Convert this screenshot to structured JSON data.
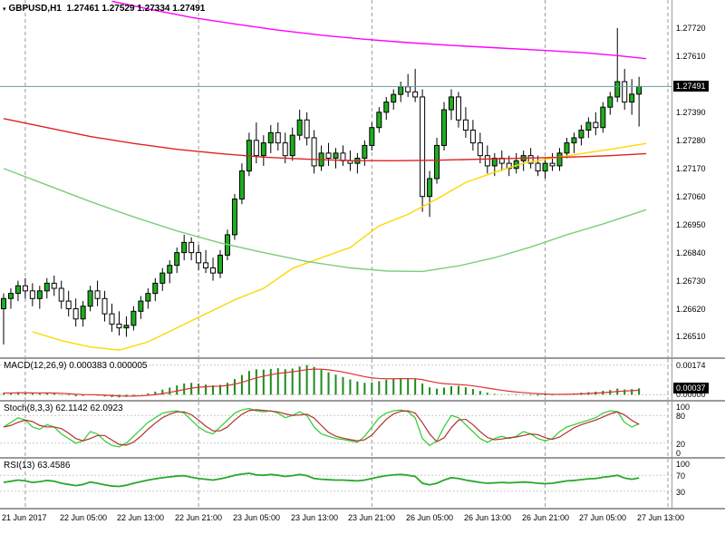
{
  "header": {
    "symbol_period": "GBPUSD,H1",
    "ohlc_text": "1.27461 1.27529 1.27334 1.27491",
    "dropdown_icon": "▾"
  },
  "chart_data": {
    "type": "candlestick+indicators",
    "symbol": "GBPUSD",
    "timeframe": "H1",
    "last": {
      "open": 1.27461,
      "high": 1.27529,
      "low": 1.27334,
      "close": 1.27491
    },
    "time_labels": [
      "21 Jun 2017",
      "22 Jun 05:00",
      "22 Jun 13:00",
      "22 Jun 21:00",
      "23 Jun 05:00",
      "23 Jun 13:00",
      "23 Jun 21:00",
      "26 Jun 05:00",
      "26 Jun 13:00",
      "26 Jun 21:00",
      "27 Jun 05:00",
      "27 Jun 13:00"
    ],
    "label_candle_indices": [
      0,
      8,
      16,
      24,
      32,
      40,
      48,
      56,
      64,
      72,
      80,
      88
    ],
    "day_separators": [
      3,
      27,
      51,
      75,
      92
    ],
    "main": {
      "price_min": 1.2643,
      "price_max": 1.2783,
      "scale_labels": [
        "1.27720",
        "1.27610",
        "1.27500",
        "1.27390",
        "1.27280",
        "1.27170",
        "1.27060",
        "1.26950",
        "1.26840",
        "1.26730",
        "1.26620",
        "1.26510"
      ],
      "price_badge": "1.27491",
      "bull_color": "#1fae1f",
      "bear_color": "#ffffff",
      "wick_color": "#000000",
      "price_line": {
        "value": 1.27491,
        "color": "#5f9ea0"
      },
      "candles": [
        [
          1.2662,
          1.2668,
          1.2648,
          1.2666
        ],
        [
          1.2666,
          1.267,
          1.2662,
          1.2668
        ],
        [
          1.2668,
          1.2673,
          1.2665,
          1.2671
        ],
        [
          1.2671,
          1.2674,
          1.2666,
          1.2669
        ],
        [
          1.2669,
          1.2672,
          1.2663,
          1.2666
        ],
        [
          1.2666,
          1.2671,
          1.2662,
          1.2669
        ],
        [
          1.2669,
          1.2674,
          1.2666,
          1.2672
        ],
        [
          1.2672,
          1.2675,
          1.2667,
          1.267
        ],
        [
          1.267,
          1.2673,
          1.2662,
          1.2665
        ],
        [
          1.2665,
          1.2669,
          1.2659,
          1.2662
        ],
        [
          1.2662,
          1.2666,
          1.2655,
          1.2658
        ],
        [
          1.2658,
          1.2665,
          1.2655,
          1.2663
        ],
        [
          1.2663,
          1.2671,
          1.2661,
          1.2669
        ],
        [
          1.2669,
          1.2673,
          1.2663,
          1.2666
        ],
        [
          1.2666,
          1.2669,
          1.2657,
          1.266
        ],
        [
          1.266,
          1.2664,
          1.2653,
          1.2656
        ],
        [
          1.2656,
          1.2661,
          1.26515,
          1.26545
        ],
        [
          1.26545,
          1.2659,
          1.2651,
          1.26555
        ],
        [
          1.26555,
          1.2663,
          1.26535,
          1.2661
        ],
        [
          1.2661,
          1.2667,
          1.2658,
          1.2665
        ],
        [
          1.2665,
          1.267,
          1.2662,
          1.2668
        ],
        [
          1.2668,
          1.2674,
          1.2665,
          1.2672
        ],
        [
          1.2672,
          1.2678,
          1.2669,
          1.2676
        ],
        [
          1.2676,
          1.2681,
          1.2672,
          1.2679
        ],
        [
          1.2679,
          1.2686,
          1.2676,
          1.2684
        ],
        [
          1.2684,
          1.2691,
          1.2681,
          1.2688
        ],
        [
          1.2688,
          1.269,
          1.2681,
          1.2684
        ],
        [
          1.2684,
          1.2687,
          1.2677,
          1.268
        ],
        [
          1.268,
          1.2685,
          1.2676,
          1.2678
        ],
        [
          1.2678,
          1.2682,
          1.2673,
          1.2676
        ],
        [
          1.2676,
          1.2685,
          1.2674,
          1.2683
        ],
        [
          1.2683,
          1.2693,
          1.2681,
          1.2691
        ],
        [
          1.2691,
          1.2707,
          1.2689,
          1.2705
        ],
        [
          1.2705,
          1.2719,
          1.2703,
          1.2716
        ],
        [
          1.2716,
          1.2731,
          1.2714,
          1.2728
        ],
        [
          1.2728,
          1.2735,
          1.2719,
          1.2722
        ],
        [
          1.2722,
          1.273,
          1.2718,
          1.2727
        ],
        [
          1.2727,
          1.2734,
          1.2723,
          1.2731
        ],
        [
          1.2731,
          1.2735,
          1.2724,
          1.2727
        ],
        [
          1.2727,
          1.2731,
          1.2719,
          1.2722
        ],
        [
          1.2722,
          1.2733,
          1.272,
          1.273
        ],
        [
          1.273,
          1.274,
          1.2728,
          1.2736
        ],
        [
          1.2736,
          1.2739,
          1.2726,
          1.2729
        ],
        [
          1.2729,
          1.2732,
          1.2715,
          1.2718
        ],
        [
          1.2718,
          1.2726,
          1.2716,
          1.2723
        ],
        [
          1.2723,
          1.2727,
          1.2718,
          1.2721
        ],
        [
          1.2721,
          1.2725,
          1.2717,
          1.2723
        ],
        [
          1.2723,
          1.2726,
          1.2718,
          1.272
        ],
        [
          1.272,
          1.2724,
          1.2716,
          1.2719
        ],
        [
          1.2719,
          1.2723,
          1.2715,
          1.2721
        ],
        [
          1.2721,
          1.2728,
          1.2718,
          1.2726
        ],
        [
          1.2726,
          1.2735,
          1.2724,
          1.2733
        ],
        [
          1.2733,
          1.2741,
          1.2731,
          1.2739
        ],
        [
          1.2739,
          1.2745,
          1.2736,
          1.2743
        ],
        [
          1.2743,
          1.2748,
          1.274,
          1.2746
        ],
        [
          1.2746,
          1.2751,
          1.2743,
          1.2749
        ],
        [
          1.2749,
          1.2754,
          1.2745,
          1.2747
        ],
        [
          1.2747,
          1.2756,
          1.2743,
          1.2745
        ],
        [
          1.2745,
          1.2748,
          1.27,
          1.2706
        ],
        [
          1.2706,
          1.2716,
          1.2698,
          1.2713
        ],
        [
          1.2713,
          1.2729,
          1.2711,
          1.2726
        ],
        [
          1.2726,
          1.2743,
          1.2724,
          1.274
        ],
        [
          1.274,
          1.2748,
          1.2736,
          1.2745
        ],
        [
          1.2745,
          1.2747,
          1.2733,
          1.2736
        ],
        [
          1.2736,
          1.2741,
          1.2729,
          1.2732
        ],
        [
          1.2732,
          1.2736,
          1.2724,
          1.2727
        ],
        [
          1.2727,
          1.2731,
          1.2719,
          1.2722
        ],
        [
          1.2722,
          1.2726,
          1.2715,
          1.2718
        ],
        [
          1.2718,
          1.2723,
          1.2714,
          1.2721
        ],
        [
          1.2721,
          1.2724,
          1.2716,
          1.2719
        ],
        [
          1.2719,
          1.2722,
          1.2714,
          1.2717
        ],
        [
          1.2717,
          1.2723,
          1.2715,
          1.272
        ],
        [
          1.272,
          1.2724,
          1.2716,
          1.2722
        ],
        [
          1.2722,
          1.2725,
          1.2717,
          1.2719
        ],
        [
          1.2719,
          1.2722,
          1.2714,
          1.2716
        ],
        [
          1.2716,
          1.2721,
          1.2713,
          1.2719
        ],
        [
          1.2719,
          1.2723,
          1.2716,
          1.2718
        ],
        [
          1.2718,
          1.2725,
          1.2716,
          1.2723
        ],
        [
          1.2723,
          1.2729,
          1.2721,
          1.2727
        ],
        [
          1.2727,
          1.2731,
          1.2723,
          1.2729
        ],
        [
          1.2729,
          1.2734,
          1.2726,
          1.2732
        ],
        [
          1.2732,
          1.2737,
          1.2729,
          1.2735
        ],
        [
          1.2735,
          1.2739,
          1.273,
          1.2733
        ],
        [
          1.2733,
          1.2743,
          1.2731,
          1.2741
        ],
        [
          1.2741,
          1.2747,
          1.2738,
          1.2745
        ],
        [
          1.2745,
          1.2772,
          1.2743,
          1.2751
        ],
        [
          1.2751,
          1.2756,
          1.274,
          1.2743
        ],
        [
          1.2743,
          1.2752,
          1.2738,
          1.27461
        ],
        [
          1.27461,
          1.27529,
          1.27334,
          1.27491
        ]
      ],
      "ma": [
        {
          "name": "ma-yellow",
          "color": "#ffd700",
          "points": [
            [
              4,
              1.2653
            ],
            [
              8,
              1.26495
            ],
            [
              12,
              1.2647
            ],
            [
              16,
              1.26458
            ],
            [
              20,
              1.2649
            ],
            [
              24,
              1.26545
            ],
            [
              28,
              1.266
            ],
            [
              32,
              1.26655
            ],
            [
              36,
              1.267
            ],
            [
              40,
              1.26778
            ],
            [
              44,
              1.2682
            ],
            [
              48,
              1.2686
            ],
            [
              52,
              1.26945
            ],
            [
              56,
              1.2699
            ],
            [
              60,
              1.2705
            ],
            [
              64,
              1.27115
            ],
            [
              68,
              1.27155
            ],
            [
              72,
              1.2719
            ],
            [
              76,
              1.2721
            ],
            [
              80,
              1.27228
            ],
            [
              84,
              1.27245
            ],
            [
              89,
              1.27268
            ]
          ]
        },
        {
          "name": "ma-green",
          "color": "#7ccd7c",
          "points": [
            [
              0,
              1.2717
            ],
            [
              6,
              1.27105
            ],
            [
              12,
              1.2704
            ],
            [
              18,
              1.2698
            ],
            [
              24,
              1.26925
            ],
            [
              30,
              1.26878
            ],
            [
              36,
              1.2684
            ],
            [
              42,
              1.26805
            ],
            [
              48,
              1.2678
            ],
            [
              53,
              1.26768
            ],
            [
              58,
              1.26766
            ],
            [
              63,
              1.26788
            ],
            [
              68,
              1.2682
            ],
            [
              73,
              1.26862
            ],
            [
              78,
              1.2691
            ],
            [
              83,
              1.26952
            ],
            [
              89,
              1.27008
            ]
          ]
        },
        {
          "name": "ma-red",
          "color": "#dd2222",
          "points": [
            [
              0,
              1.27365
            ],
            [
              6,
              1.2733
            ],
            [
              12,
              1.27295
            ],
            [
              18,
              1.27268
            ],
            [
              24,
              1.27245
            ],
            [
              30,
              1.27228
            ],
            [
              36,
              1.27214
            ],
            [
              42,
              1.27206
            ],
            [
              48,
              1.27201
            ],
            [
              54,
              1.272
            ],
            [
              60,
              1.27202
            ],
            [
              66,
              1.27206
            ],
            [
              72,
              1.2721
            ],
            [
              78,
              1.27214
            ],
            [
              84,
              1.2722
            ],
            [
              89,
              1.27228
            ]
          ]
        },
        {
          "name": "ma-magenta",
          "color": "#ff00ff",
          "points": [
            [
              15,
              1.27825
            ],
            [
              20,
              1.27795
            ],
            [
              26,
              1.27762
            ],
            [
              32,
              1.27736
            ],
            [
              38,
              1.27712
            ],
            [
              44,
              1.27692
            ],
            [
              50,
              1.27676
            ],
            [
              56,
              1.27663
            ],
            [
              62,
              1.27652
            ],
            [
              68,
              1.27643
            ],
            [
              74,
              1.27634
            ],
            [
              80,
              1.27624
            ],
            [
              85,
              1.27612
            ],
            [
              89,
              1.276
            ]
          ]
        }
      ]
    },
    "macd": {
      "label": "MACD(12,26,9)",
      "values_text": "0.000383 0.000005",
      "range": [
        -0.0003,
        0.0021
      ],
      "scale_labels": [
        "0.00174",
        "0.00000"
      ],
      "badge": "0.00037",
      "signal_period": 9,
      "hist_color": "#1c8c1c",
      "signal_color": "#e03030",
      "histogram": [
        0.0001,
        0.00012,
        0.00015,
        0.00012,
        8e-05,
        9e-05,
        0.00011,
        8e-05,
        2e-05,
        -4e-05,
        -9e-05,
        -7e-05,
        -2e-05,
        -5e-05,
        -0.0001,
        -0.00014,
        -0.00016,
        -0.00013,
        -7e-05,
        0.0,
        8e-05,
        0.00018,
        0.0003,
        0.00042,
        0.00055,
        0.00066,
        0.0007,
        0.00066,
        0.0006,
        0.00056,
        0.00058,
        0.0007,
        0.00092,
        0.00116,
        0.0014,
        0.0015,
        0.00148,
        0.00152,
        0.00156,
        0.0015,
        0.00154,
        0.00166,
        0.00174,
        0.00164,
        0.00148,
        0.00132,
        0.00118,
        0.00104,
        0.0009,
        0.00078,
        0.0007,
        0.00072,
        0.0008,
        0.00088,
        0.00094,
        0.00098,
        0.00096,
        0.00092,
        0.00066,
        0.00044,
        0.00036,
        0.00042,
        0.0005,
        0.00052,
        0.00044,
        0.00034,
        0.00022,
        0.00012,
        5e-05,
        1e-05,
        -2e-05,
        -3e-05,
        -2e-05,
        -4e-05,
        -6e-05,
        -5e-05,
        -3e-05,
        1e-05,
        5e-05,
        8e-05,
        0.00012,
        0.00015,
        0.00018,
        0.00023,
        0.00028,
        0.00036,
        0.00031,
        0.00033,
        0.00038
      ]
    },
    "stoch": {
      "label": "Stoch(8,3,3)",
      "values_text": "62.1142 62.0923",
      "range": [
        0,
        100
      ],
      "levels": [
        80,
        20
      ],
      "scale_labels": [
        "100",
        "80",
        "20",
        "0"
      ],
      "d_period": 3,
      "k_color": "#2ecc2e",
      "d_color": "#b03030",
      "k": [
        55,
        65,
        75,
        70,
        55,
        50,
        60,
        55,
        40,
        30,
        20,
        25,
        45,
        40,
        25,
        15,
        12,
        20,
        35,
        50,
        65,
        75,
        85,
        88,
        90,
        85,
        70,
        55,
        45,
        40,
        55,
        70,
        85,
        92,
        95,
        90,
        88,
        90,
        85,
        75,
        80,
        88,
        80,
        55,
        40,
        35,
        30,
        28,
        25,
        22,
        35,
        55,
        75,
        85,
        90,
        92,
        88,
        75,
        30,
        15,
        25,
        55,
        80,
        75,
        60,
        45,
        30,
        22,
        30,
        35,
        30,
        35,
        45,
        40,
        30,
        25,
        30,
        45,
        55,
        60,
        65,
        70,
        75,
        85,
        90,
        88,
        65,
        55,
        62.11
      ]
    },
    "rsi": {
      "label": "RSI(13)",
      "value_text": "63.4586",
      "range": [
        0,
        100
      ],
      "levels": [
        70,
        30
      ],
      "scale_labels": [
        "100",
        "70",
        "30"
      ],
      "color": "#2aa82a",
      "values": [
        52,
        55,
        58,
        56,
        52,
        54,
        57,
        55,
        50,
        47,
        44,
        47,
        53,
        50,
        46,
        43,
        42,
        45,
        50,
        54,
        58,
        61,
        64,
        66,
        68,
        69,
        65,
        62,
        60,
        58,
        61,
        65,
        70,
        73,
        75,
        71,
        70,
        72,
        70,
        67,
        69,
        72,
        69,
        62,
        60,
        59,
        58,
        58,
        57,
        56,
        58,
        62,
        66,
        69,
        71,
        72,
        70,
        67,
        50,
        46,
        50,
        58,
        64,
        62,
        58,
        55,
        52,
        50,
        51,
        52,
        51,
        52,
        53,
        52,
        50,
        49,
        50,
        53,
        56,
        57,
        59,
        61,
        62,
        65,
        67,
        70,
        63,
        60,
        63.46
      ]
    }
  }
}
